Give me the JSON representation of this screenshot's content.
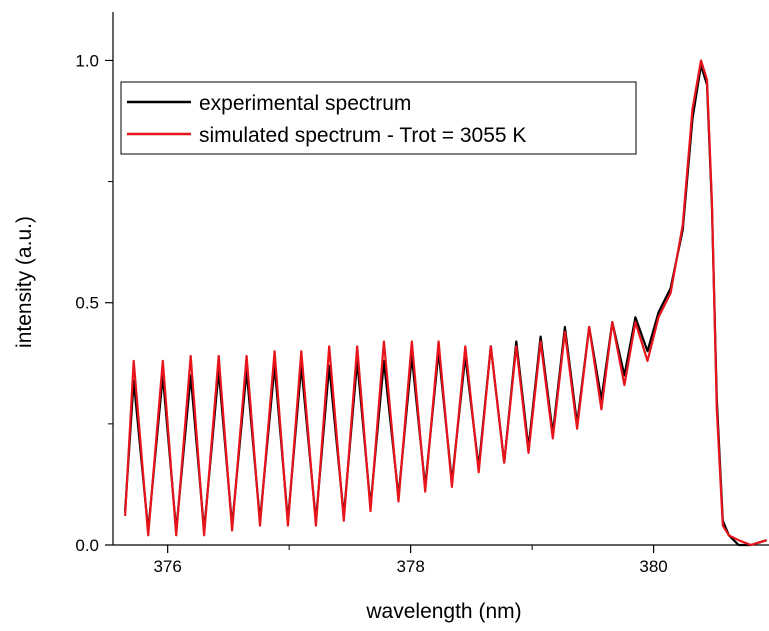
{
  "chart_data": {
    "type": "line",
    "title": "",
    "xlabel": "wavelength (nm)",
    "ylabel": "intensity (a.u.)",
    "xlim": [
      375.55,
      380.95
    ],
    "ylim": [
      0.0,
      1.1
    ],
    "x_ticks": [
      376,
      378,
      380
    ],
    "x_tick_labels": [
      "376",
      "378",
      "380"
    ],
    "y_ticks": [
      0.0,
      0.5,
      1.0
    ],
    "y_tick_labels": [
      "0.0",
      "0.5",
      "1.0"
    ],
    "grid": false,
    "legend_position": "top-left",
    "series": [
      {
        "name": "experimental spectrum",
        "color": "#000000",
        "x": [
          375.65,
          375.72,
          375.84,
          375.96,
          376.07,
          376.19,
          376.3,
          376.42,
          376.53,
          376.65,
          376.76,
          376.88,
          376.99,
          377.1,
          377.22,
          377.33,
          377.45,
          377.56,
          377.67,
          377.78,
          377.9,
          378.01,
          378.12,
          378.23,
          378.34,
          378.45,
          378.56,
          378.66,
          378.77,
          378.87,
          378.97,
          379.07,
          379.17,
          379.27,
          379.37,
          379.47,
          379.57,
          379.66,
          379.76,
          379.85,
          379.95,
          380.04,
          380.14,
          380.24,
          380.32,
          380.39,
          380.44,
          380.48,
          380.52,
          380.57,
          380.62,
          380.7,
          380.8,
          380.93
        ],
        "y": [
          0.07,
          0.34,
          0.03,
          0.35,
          0.03,
          0.35,
          0.03,
          0.36,
          0.04,
          0.36,
          0.05,
          0.37,
          0.05,
          0.37,
          0.05,
          0.37,
          0.06,
          0.38,
          0.08,
          0.38,
          0.1,
          0.39,
          0.12,
          0.4,
          0.13,
          0.39,
          0.16,
          0.41,
          0.17,
          0.42,
          0.2,
          0.43,
          0.23,
          0.45,
          0.25,
          0.45,
          0.3,
          0.46,
          0.35,
          0.47,
          0.4,
          0.48,
          0.53,
          0.65,
          0.88,
          0.99,
          0.95,
          0.7,
          0.3,
          0.05,
          0.02,
          0.0,
          0.0,
          0.01
        ]
      },
      {
        "name": "simulated spectrum - Trot = 3055 K",
        "color": "#e8141c",
        "x": [
          375.65,
          375.72,
          375.84,
          375.96,
          376.07,
          376.19,
          376.3,
          376.42,
          376.53,
          376.65,
          376.76,
          376.88,
          376.99,
          377.1,
          377.22,
          377.33,
          377.45,
          377.56,
          377.67,
          377.78,
          377.9,
          378.01,
          378.12,
          378.23,
          378.34,
          378.45,
          378.56,
          378.66,
          378.77,
          378.87,
          378.97,
          379.07,
          379.17,
          379.27,
          379.37,
          379.47,
          379.57,
          379.66,
          379.76,
          379.85,
          379.95,
          380.04,
          380.14,
          380.24,
          380.32,
          380.39,
          380.44,
          380.48,
          380.52,
          380.57,
          380.62,
          380.7,
          380.8,
          380.93
        ],
        "y": [
          0.06,
          0.38,
          0.02,
          0.38,
          0.02,
          0.39,
          0.02,
          0.39,
          0.03,
          0.39,
          0.04,
          0.4,
          0.04,
          0.4,
          0.04,
          0.41,
          0.05,
          0.41,
          0.07,
          0.42,
          0.09,
          0.42,
          0.11,
          0.42,
          0.12,
          0.41,
          0.15,
          0.41,
          0.17,
          0.41,
          0.19,
          0.42,
          0.22,
          0.44,
          0.24,
          0.45,
          0.28,
          0.46,
          0.33,
          0.46,
          0.38,
          0.47,
          0.52,
          0.66,
          0.9,
          1.0,
          0.96,
          0.71,
          0.28,
          0.04,
          0.02,
          0.01,
          0.0,
          0.01
        ]
      }
    ]
  }
}
